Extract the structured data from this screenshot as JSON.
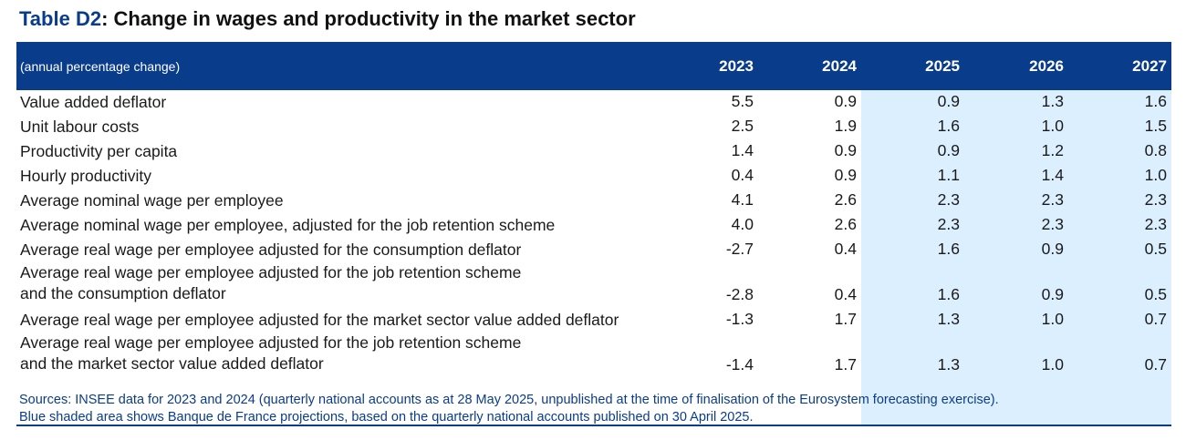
{
  "title": {
    "code": "Table D2",
    "rest": ": Change in wages and productivity in the market sector"
  },
  "table": {
    "unit": "(annual percentage change)",
    "years": [
      "2023",
      "2024",
      "2025",
      "2026",
      "2027"
    ],
    "rows": [
      {
        "label_lines": [
          "Value added deflator"
        ],
        "values": [
          "5.5",
          "0.9",
          "0.9",
          "1.3",
          "1.6"
        ]
      },
      {
        "label_lines": [
          "Unit labour costs"
        ],
        "values": [
          "2.5",
          "1.9",
          "1.6",
          "1.0",
          "1.5"
        ]
      },
      {
        "label_lines": [
          "Productivity per capita"
        ],
        "values": [
          "1.4",
          "0.9",
          "0.9",
          "1.2",
          "0.8"
        ]
      },
      {
        "label_lines": [
          "Hourly productivity"
        ],
        "values": [
          "0.4",
          "0.9",
          "1.1",
          "1.4",
          "1.0"
        ]
      },
      {
        "label_lines": [
          "Average nominal wage per employee"
        ],
        "values": [
          "4.1",
          "2.6",
          "2.3",
          "2.3",
          "2.3"
        ]
      },
      {
        "label_lines": [
          "Average nominal wage per employee, adjusted for the job retention scheme"
        ],
        "values": [
          "4.0",
          "2.6",
          "2.3",
          "2.3",
          "2.3"
        ]
      },
      {
        "label_lines": [
          "Average real wage per employee adjusted for the consumption deflator"
        ],
        "values": [
          "-2.7",
          "0.4",
          "1.6",
          "0.9",
          "0.5"
        ]
      },
      {
        "label_lines": [
          "Average real wage per employee adjusted for the job retention scheme",
          "and the consumption deflator"
        ],
        "values": [
          "-2.8",
          "0.4",
          "1.6",
          "0.9",
          "0.5"
        ]
      },
      {
        "label_lines": [
          "Average real wage per employee adjusted for the market sector value added deflator"
        ],
        "values": [
          "-1.3",
          "1.7",
          "1.3",
          "1.0",
          "0.7"
        ]
      },
      {
        "label_lines": [
          "Average real wage per employee adjusted for the job retention scheme",
          "and the market sector value added deflator"
        ],
        "values": [
          "-1.4",
          "1.7",
          "1.3",
          "1.0",
          "0.7"
        ]
      }
    ]
  },
  "sources": [
    "Sources: INSEE data for 2023 and 2024 (quarterly national accounts as at 28 May 2025, unpublished at the time of finalisation of the Eurosystem forecasting exercise).",
    "Blue shaded area shows Banque de France projections, based on the quarterly national accounts published on 30 April 2025."
  ],
  "colors": {
    "header_bg": "#0a3c8c",
    "projection_shade": "#dcefff",
    "source_text": "#0a3c8c"
  }
}
